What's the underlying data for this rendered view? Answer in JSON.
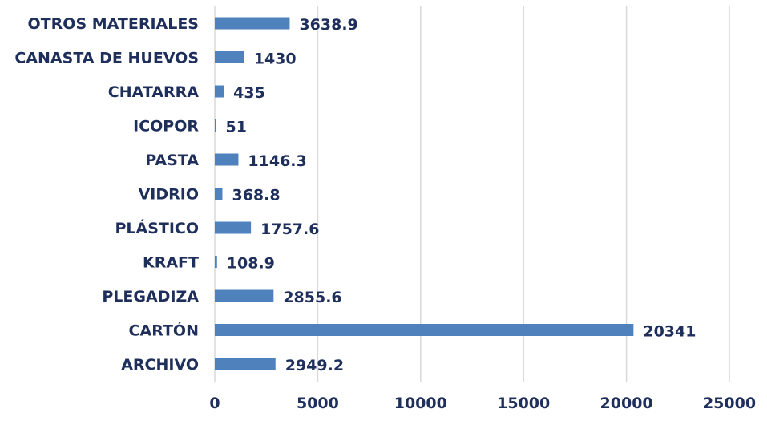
{
  "chart_data": {
    "type": "bar",
    "orientation": "horizontal",
    "categories": [
      "OTROS MATERIALES",
      "CANASTA DE HUEVOS",
      "CHATARRA",
      "ICOPOR",
      "PASTA",
      "VIDRIO",
      "PLÁSTICO",
      "KRAFT",
      "PLEGADIZA",
      "CARTÓN",
      "ARCHIVO"
    ],
    "values": [
      3638.9,
      1430,
      435,
      51,
      1146.3,
      368.8,
      1757.6,
      108.9,
      2855.6,
      20341,
      2949.2
    ],
    "data_labels": [
      "3638.9",
      "1430",
      "435",
      "51",
      "1146.3",
      "368.8",
      "1757.6",
      "108.9",
      "2855.6",
      "20341",
      "2949.2"
    ],
    "xlim": [
      0,
      25000
    ],
    "x_ticks": [
      "0",
      "5000",
      "10000",
      "15000",
      "20000",
      "25000"
    ],
    "x_tick_values": [
      0,
      5000,
      10000,
      15000,
      20000,
      25000
    ],
    "grid": "vertical",
    "legend": "none",
    "colors": {
      "bar": "#4f81bd",
      "text": "#1f2f5c",
      "grid": "#d9d9d9"
    }
  }
}
